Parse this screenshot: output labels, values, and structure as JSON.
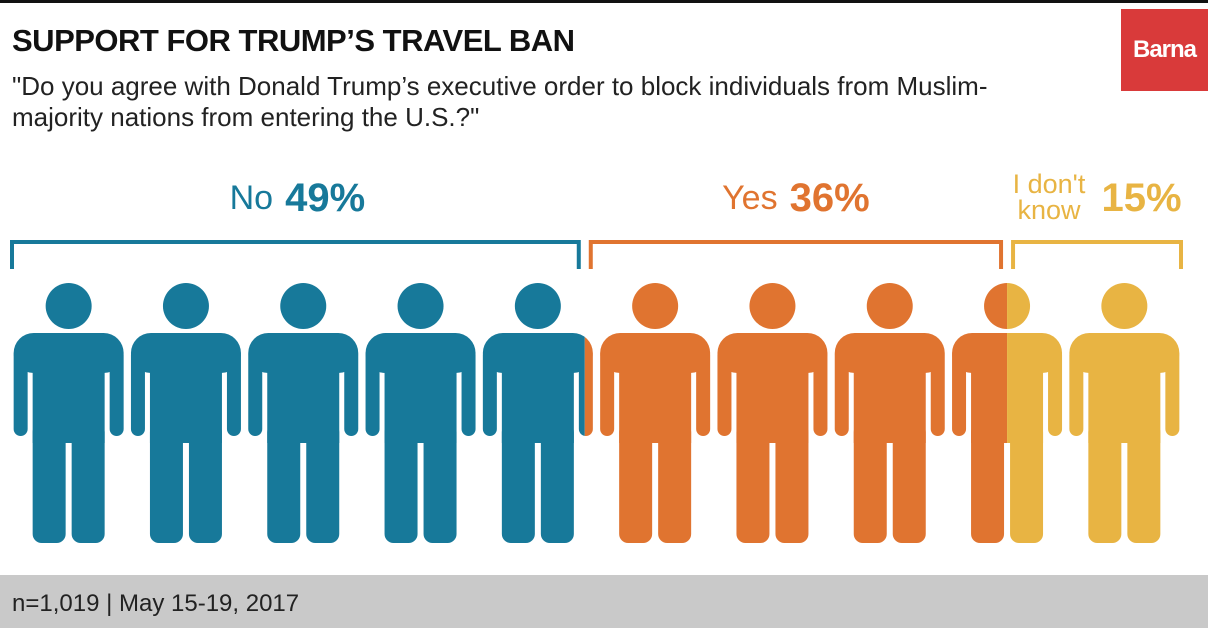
{
  "chart_data": {
    "type": "pictograph",
    "title": "SUPPORT FOR TRUMP’S TRAVEL BAN",
    "subtitle": "\"Do you agree with Donald Trump’s executive order to block individuals from Muslim-majority nations from entering the U.S.?\"",
    "note": "n=1,019 | May 15-19, 2017",
    "brand": "Barna",
    "categories": [
      "No",
      "Yes",
      "I don't know"
    ],
    "values": [
      49,
      36,
      15
    ],
    "value_labels": [
      "49%",
      "36%",
      "15%"
    ],
    "colors": [
      "#17799a",
      "#e07430",
      "#e8b443"
    ]
  }
}
